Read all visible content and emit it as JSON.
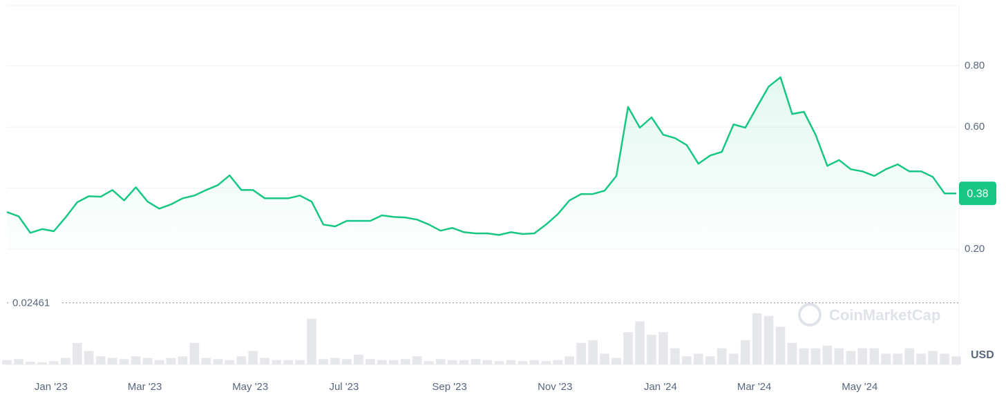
{
  "chart_data": {
    "type": "line",
    "categories": [
      null,
      null,
      null,
      null,
      "Jan '23",
      null,
      null,
      null,
      null,
      null,
      null,
      null,
      "Mar '23",
      null,
      null,
      null,
      null,
      null,
      null,
      null,
      null,
      "May '23",
      null,
      null,
      null,
      null,
      null,
      null,
      null,
      "Jul '23",
      null,
      null,
      null,
      null,
      null,
      null,
      null,
      null,
      "Sep '23",
      null,
      null,
      null,
      null,
      null,
      null,
      null,
      null,
      "Nov '23",
      null,
      null,
      null,
      null,
      null,
      null,
      null,
      null,
      "Jan '24",
      null,
      null,
      null,
      null,
      null,
      null,
      null,
      "Mar '24",
      null,
      null,
      null,
      null,
      null,
      null,
      null,
      null,
      "May '24",
      null,
      null,
      null,
      null,
      null,
      null,
      null,
      null
    ],
    "series": [
      {
        "name": "Price",
        "color": "#16c784",
        "values": [
          0.322,
          0.308,
          0.254,
          0.266,
          0.259,
          0.304,
          0.354,
          0.374,
          0.372,
          0.394,
          0.36,
          0.403,
          0.356,
          0.333,
          0.347,
          0.367,
          0.376,
          0.394,
          0.41,
          0.442,
          0.394,
          0.394,
          0.367,
          0.367,
          0.367,
          0.376,
          0.356,
          0.281,
          0.275,
          0.293,
          0.293,
          0.293,
          0.311,
          0.306,
          0.304,
          0.297,
          0.281,
          0.261,
          0.27,
          0.256,
          0.252,
          0.252,
          0.247,
          0.256,
          0.25,
          0.252,
          0.281,
          0.315,
          0.36,
          0.381,
          0.381,
          0.392,
          0.44,
          0.666,
          0.598,
          0.632,
          0.575,
          0.564,
          0.541,
          0.48,
          0.507,
          0.519,
          0.609,
          0.598,
          0.666,
          0.733,
          0.763,
          0.643,
          0.65,
          0.575,
          0.473,
          0.492,
          0.462,
          0.455,
          0.44,
          0.462,
          0.478,
          0.455,
          0.455,
          0.437,
          0.383,
          0.383
        ],
        "value_labels": [
          null,
          null,
          null,
          null,
          null,
          null,
          null,
          null,
          null,
          null,
          null,
          null,
          null,
          null,
          null,
          null,
          null,
          null,
          null,
          null,
          null,
          null,
          null,
          null,
          null,
          null,
          null,
          null,
          null,
          null,
          null,
          null,
          null,
          null,
          null,
          null,
          null,
          null,
          null,
          null,
          null,
          null,
          null,
          null,
          null,
          null,
          null,
          null,
          null,
          null,
          null,
          null,
          null,
          null,
          null,
          null,
          null,
          null,
          null,
          null,
          null,
          null,
          null,
          null,
          null,
          null,
          null,
          null,
          null,
          null,
          null,
          null,
          null,
          null,
          null,
          null,
          null,
          null,
          null,
          null,
          null,
          "0.38"
        ]
      },
      {
        "name": "Volume",
        "color": "#e5e7eb",
        "axis": "y2",
        "values": [
          8,
          10,
          5,
          4,
          6,
          12,
          40,
          25,
          15,
          12,
          10,
          15,
          12,
          8,
          12,
          15,
          40,
          12,
          10,
          8,
          15,
          25,
          12,
          8,
          8,
          8,
          85,
          10,
          12,
          10,
          18,
          10,
          8,
          8,
          10,
          15,
          6,
          10,
          8,
          8,
          10,
          8,
          6,
          8,
          6,
          8,
          6,
          8,
          15,
          40,
          45,
          20,
          12,
          60,
          80,
          55,
          60,
          30,
          15,
          20,
          15,
          30,
          20,
          45,
          95,
          90,
          70,
          40,
          30,
          30,
          35,
          30,
          25,
          30,
          30,
          20,
          20,
          30,
          20,
          25,
          20,
          15
        ]
      }
    ],
    "ylim": [
      -0.177,
      0.998
    ],
    "yticks": [
      {
        "value": 0.2,
        "label": "0.20"
      },
      {
        "value": 0.4,
        "label": "0.40"
      },
      {
        "value": 0.6,
        "label": "0.60"
      },
      {
        "value": 0.8,
        "label": "0.80"
      }
    ],
    "y2lim": [
      0,
      100
    ],
    "min_value": 0.02461,
    "currency": "USD",
    "watermark": "CoinMarketCap",
    "grid": true
  }
}
